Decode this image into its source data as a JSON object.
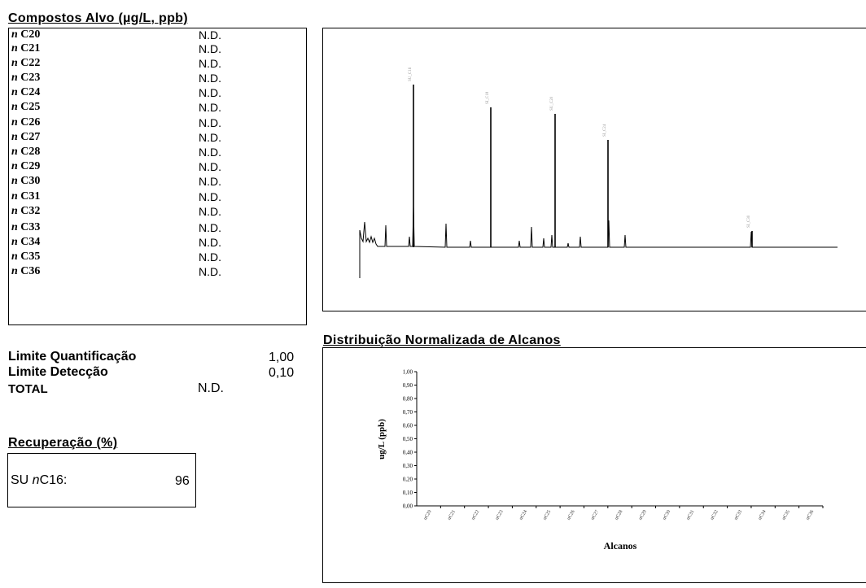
{
  "compounds": {
    "title": "Compostos Alvo (µg/L, ppb)",
    "prefix": "n",
    "rows": [
      {
        "name": "C20",
        "value": "N.D."
      },
      {
        "name": "C21",
        "value": "N.D."
      },
      {
        "name": "C22",
        "value": "N.D."
      },
      {
        "name": "C23",
        "value": "N.D."
      },
      {
        "name": "C24",
        "value": "N.D."
      },
      {
        "name": "C25",
        "value": "N.D."
      },
      {
        "name": "C26",
        "value": "N.D."
      },
      {
        "name": "C27",
        "value": "N.D."
      },
      {
        "name": "C28",
        "value": "N.D."
      },
      {
        "name": "C29",
        "value": "N.D."
      },
      {
        "name": "C30",
        "value": "N.D."
      },
      {
        "name": "C31",
        "value": "N.D."
      },
      {
        "name": "C32",
        "value": "N.D."
      },
      {
        "name": "C33",
        "value": "N.D."
      },
      {
        "name": "C34",
        "value": "N.D."
      },
      {
        "name": "C35",
        "value": "N.D."
      },
      {
        "name": "C36",
        "value": "N.D."
      }
    ]
  },
  "limits": {
    "quant_label": "Limite Quantificação",
    "quant_value": "1,00",
    "detect_label": "Limite Detecção",
    "detect_value": "0,10",
    "total_label": "TOTAL",
    "total_value": "N.D."
  },
  "recovery": {
    "title": "Recuperação (%)",
    "label_prefix": "SU ",
    "label_italic": "n",
    "label_suffix": "C16:",
    "value": "96"
  },
  "distribution_title": "Distribuição Normalizada de Alcanos",
  "chart_data": [
    {
      "type": "line",
      "peaks": [
        {
          "label": "SU_C16",
          "relative_height": 1.0
        },
        {
          "label": "SI_C18",
          "relative_height": 0.86
        },
        {
          "label": "SU_C20",
          "relative_height": 0.82
        },
        {
          "label": "SI_C24",
          "relative_height": 0.66
        },
        {
          "label": "SI_C30",
          "relative_height": 0.1
        }
      ]
    },
    {
      "type": "bar",
      "categories": [
        "nC20",
        "nC21",
        "nC22",
        "nC23",
        "nC24",
        "nC25",
        "nC26",
        "nC27",
        "nC28",
        "nC29",
        "nC30",
        "nC31",
        "nC32",
        "nC33",
        "nC34",
        "nC35",
        "nC36"
      ],
      "values": [
        0,
        0,
        0,
        0,
        0,
        0,
        0,
        0,
        0,
        0,
        0,
        0,
        0,
        0,
        0,
        0,
        0
      ],
      "yticks": [
        "0,00",
        "0,10",
        "0,20",
        "0,30",
        "0,40",
        "0,50",
        "0,60",
        "0,70",
        "0,80",
        "0,90",
        "1,00"
      ],
      "ylim": [
        0,
        1
      ],
      "ylabel": "ug/L (ppb)",
      "xlabel": "Alcanos"
    }
  ]
}
